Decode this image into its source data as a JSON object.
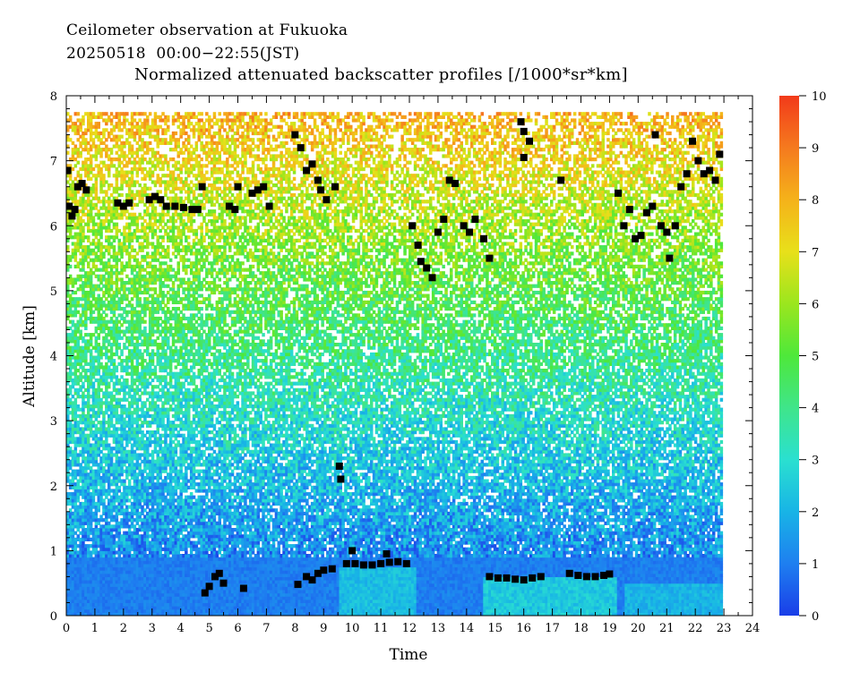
{
  "header": {
    "line1": "Ceilometer observation at Fukuoka",
    "line2": "20250518  00:00−22:55(JST)",
    "title": "Normalized attenuated backscatter profiles [/1000*sr*km]"
  },
  "chart_data": {
    "type": "heatmap",
    "title": "Normalized attenuated backscatter profiles [/1000*sr*km]",
    "xlabel": "Time",
    "ylabel": "Altitude [km]",
    "xlim": [
      0,
      24
    ],
    "ylim": [
      0,
      8
    ],
    "data_time_range": [
      0,
      22.92
    ],
    "data_altitude_max": 7.7,
    "x_ticks": [
      0,
      1,
      2,
      3,
      4,
      5,
      6,
      7,
      8,
      9,
      10,
      11,
      12,
      13,
      14,
      15,
      16,
      17,
      18,
      19,
      20,
      21,
      22,
      23,
      24
    ],
    "y_ticks": [
      0,
      1,
      2,
      3,
      4,
      5,
      6,
      7,
      8
    ],
    "colorbar": {
      "min": 0,
      "max": 10,
      "ticks": [
        0,
        1,
        2,
        3,
        4,
        5,
        6,
        7,
        8,
        9,
        10
      ],
      "colors": [
        "#1a3ee8",
        "#1e7ff0",
        "#18b4e6",
        "#2ae0d0",
        "#3fe58a",
        "#4ee83a",
        "#9be61e",
        "#e8e01a",
        "#f5b21a",
        "#f57a1e",
        "#f23a1a"
      ]
    },
    "cloud_base_markers": [
      [
        0.05,
        6.85
      ],
      [
        0.1,
        6.3
      ],
      [
        0.2,
        6.15
      ],
      [
        0.3,
        6.25
      ],
      [
        0.4,
        6.6
      ],
      [
        0.55,
        6.65
      ],
      [
        0.7,
        6.55
      ],
      [
        1.8,
        6.35
      ],
      [
        2.0,
        6.3
      ],
      [
        2.2,
        6.35
      ],
      [
        2.9,
        6.4
      ],
      [
        3.1,
        6.45
      ],
      [
        3.3,
        6.4
      ],
      [
        3.5,
        6.3
      ],
      [
        3.8,
        6.3
      ],
      [
        4.1,
        6.28
      ],
      [
        4.4,
        6.25
      ],
      [
        4.6,
        6.25
      ],
      [
        4.75,
        6.6
      ],
      [
        5.7,
        6.3
      ],
      [
        5.9,
        6.25
      ],
      [
        6.0,
        6.6
      ],
      [
        6.5,
        6.5
      ],
      [
        6.7,
        6.55
      ],
      [
        6.9,
        6.6
      ],
      [
        7.1,
        6.3
      ],
      [
        8.0,
        7.4
      ],
      [
        8.2,
        7.2
      ],
      [
        8.4,
        6.85
      ],
      [
        8.6,
        6.95
      ],
      [
        8.8,
        6.7
      ],
      [
        8.9,
        6.55
      ],
      [
        9.1,
        6.4
      ],
      [
        9.4,
        6.6
      ],
      [
        12.1,
        6.0
      ],
      [
        12.3,
        5.7
      ],
      [
        12.4,
        5.45
      ],
      [
        12.6,
        5.35
      ],
      [
        12.8,
        5.2
      ],
      [
        13.0,
        5.9
      ],
      [
        13.2,
        6.1
      ],
      [
        13.4,
        6.7
      ],
      [
        13.6,
        6.65
      ],
      [
        13.9,
        6.0
      ],
      [
        14.1,
        5.9
      ],
      [
        14.3,
        6.1
      ],
      [
        14.6,
        5.8
      ],
      [
        14.8,
        5.5
      ],
      [
        15.9,
        7.6
      ],
      [
        16.0,
        7.45
      ],
      [
        16.2,
        7.3
      ],
      [
        16.0,
        7.05
      ],
      [
        17.3,
        6.7
      ],
      [
        19.3,
        6.5
      ],
      [
        19.5,
        6.0
      ],
      [
        19.7,
        6.25
      ],
      [
        19.9,
        5.8
      ],
      [
        20.1,
        5.85
      ],
      [
        20.3,
        6.2
      ],
      [
        20.5,
        6.3
      ],
      [
        20.6,
        7.4
      ],
      [
        20.8,
        6.0
      ],
      [
        21.0,
        5.9
      ],
      [
        21.1,
        5.5
      ],
      [
        21.3,
        6.0
      ],
      [
        21.5,
        6.6
      ],
      [
        21.7,
        6.8
      ],
      [
        21.9,
        7.3
      ],
      [
        22.1,
        7.0
      ],
      [
        22.3,
        6.8
      ],
      [
        22.5,
        6.85
      ],
      [
        22.7,
        6.7
      ],
      [
        22.85,
        7.1
      ],
      [
        4.85,
        0.35
      ],
      [
        5.0,
        0.45
      ],
      [
        5.2,
        0.6
      ],
      [
        5.35,
        0.65
      ],
      [
        5.5,
        0.5
      ],
      [
        6.2,
        0.42
      ],
      [
        8.1,
        0.48
      ],
      [
        8.4,
        0.6
      ],
      [
        8.6,
        0.55
      ],
      [
        8.8,
        0.65
      ],
      [
        9.0,
        0.7
      ],
      [
        9.3,
        0.72
      ],
      [
        9.6,
        2.1
      ],
      [
        9.55,
        2.3
      ],
      [
        9.8,
        0.8
      ],
      [
        10.1,
        0.8
      ],
      [
        10.4,
        0.78
      ],
      [
        10.7,
        0.78
      ],
      [
        11.0,
        0.8
      ],
      [
        11.3,
        0.82
      ],
      [
        11.6,
        0.83
      ],
      [
        11.9,
        0.8
      ],
      [
        10.0,
        1.0
      ],
      [
        11.2,
        0.95
      ],
      [
        14.8,
        0.6
      ],
      [
        15.1,
        0.58
      ],
      [
        15.4,
        0.58
      ],
      [
        15.7,
        0.56
      ],
      [
        16.0,
        0.55
      ],
      [
        16.3,
        0.58
      ],
      [
        16.6,
        0.6
      ],
      [
        17.6,
        0.65
      ],
      [
        17.9,
        0.62
      ],
      [
        18.2,
        0.6
      ],
      [
        18.5,
        0.6
      ],
      [
        18.8,
        0.62
      ],
      [
        19.0,
        0.64
      ]
    ]
  }
}
